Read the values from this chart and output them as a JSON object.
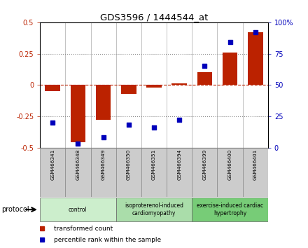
{
  "title": "GDS3596 / 1444544_at",
  "samples": [
    "GSM466341",
    "GSM466348",
    "GSM466349",
    "GSM466350",
    "GSM466351",
    "GSM466394",
    "GSM466399",
    "GSM466400",
    "GSM466401"
  ],
  "bar_values": [
    -0.05,
    -0.46,
    -0.28,
    -0.07,
    -0.02,
    0.01,
    0.1,
    0.26,
    0.42
  ],
  "percentile_values": [
    20,
    3,
    8,
    18,
    16,
    22,
    65,
    84,
    92
  ],
  "bar_color": "#bb2200",
  "dot_color": "#0000bb",
  "ylim_left": [
    -0.5,
    0.5
  ],
  "ylim_right": [
    0,
    100
  ],
  "yticks_left": [
    -0.5,
    -0.25,
    0.0,
    0.25,
    0.5
  ],
  "yticks_right": [
    0,
    25,
    50,
    75,
    100
  ],
  "ytick_labels_left": [
    "-0.5",
    "-0.25",
    "0",
    "0.25",
    "0.5"
  ],
  "ytick_labels_right": [
    "0",
    "25",
    "50",
    "75",
    "100%"
  ],
  "groups": [
    {
      "label": "control",
      "start": 0,
      "end": 3,
      "color": "#cceecc"
    },
    {
      "label": "isoproterenol-induced\ncardiomyopathy",
      "start": 3,
      "end": 6,
      "color": "#aaddaa"
    },
    {
      "label": "exercise-induced cardiac\nhypertrophy",
      "start": 6,
      "end": 9,
      "color": "#77cc77"
    }
  ],
  "protocol_label": "protocol",
  "legend_items": [
    {
      "label": "transformed count",
      "color": "#bb2200"
    },
    {
      "label": "percentile rank within the sample",
      "color": "#0000bb"
    }
  ],
  "bg_color": "#ffffff",
  "sample_box_color": "#cccccc",
  "bar_width": 0.6
}
